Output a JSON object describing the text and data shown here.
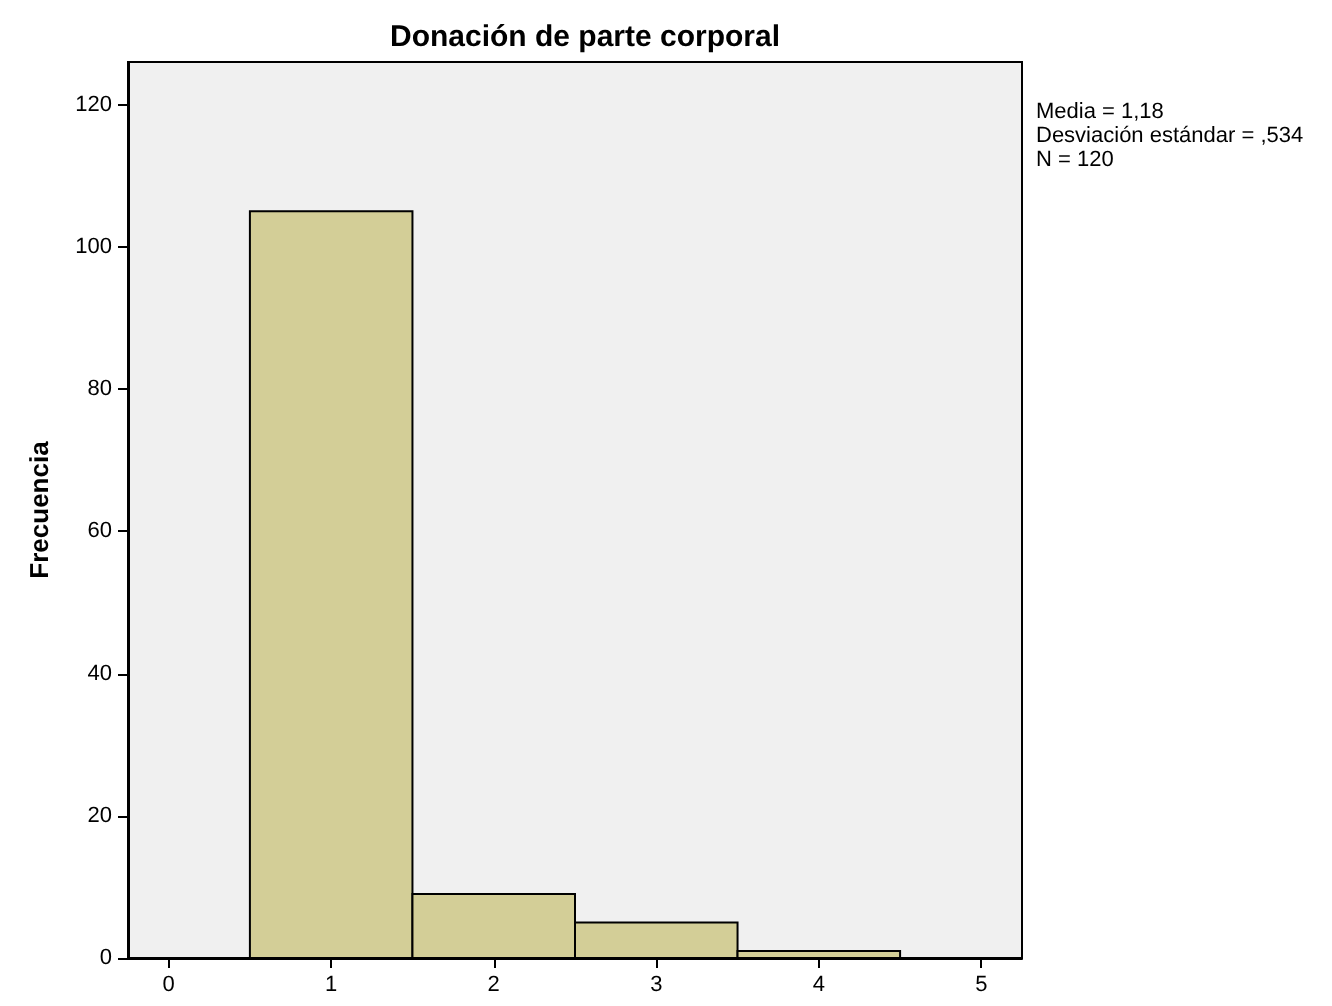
{
  "chart_data": {
    "type": "histogram",
    "title": "Donación de parte corporal",
    "ylabel": "Frecuencia",
    "bins": [
      0.5,
      1.5,
      2.5,
      3.5,
      4.5
    ],
    "values": [
      105,
      9,
      5,
      1
    ],
    "color": "#d3ce97",
    "xlim": [
      -0.25,
      5.25
    ],
    "xticks": [
      0,
      1,
      2,
      3,
      4,
      5
    ],
    "ylim": [
      0,
      126
    ],
    "yticks": [
      0,
      20,
      40,
      60,
      80,
      100,
      120
    ],
    "grid": false,
    "annotations": [
      "Media = 1,18\nDesviación estándar = ,534\nN = 120"
    ]
  }
}
